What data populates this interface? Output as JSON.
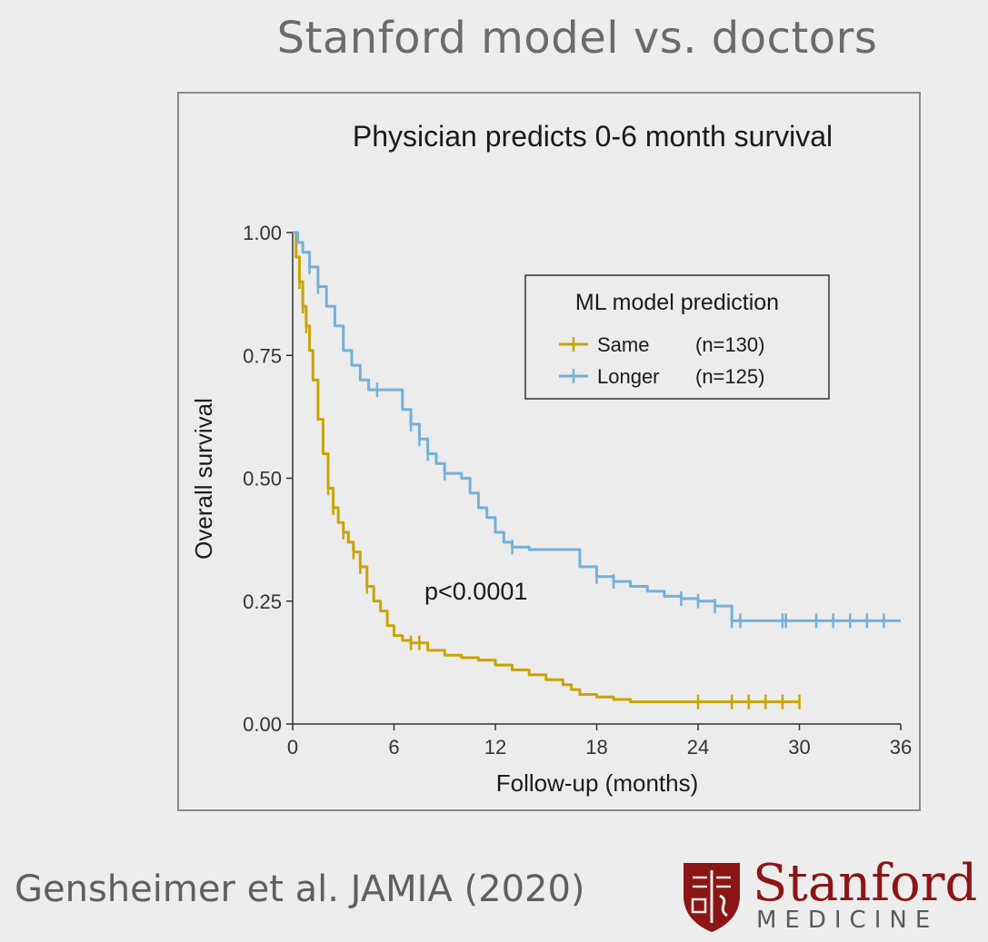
{
  "slide": {
    "title": "Stanford model vs. doctors",
    "citation": "Gensheimer et al. JAMIA (2020)",
    "logo": {
      "word": "Stanford",
      "sub": "MEDICINE",
      "color": "#8c1515"
    }
  },
  "chart_data": {
    "type": "line",
    "title": "Physician predicts 0-6 month survival",
    "xlabel": "Follow-up (months)",
    "ylabel": "Overall survival",
    "xlim": [
      0,
      36
    ],
    "ylim": [
      0,
      1
    ],
    "xticks": [
      "0",
      "6",
      "12",
      "18",
      "24",
      "30",
      "36"
    ],
    "yticks": [
      "0.00",
      "0.25",
      "0.50",
      "0.75",
      "1.00"
    ],
    "grid": false,
    "legend": {
      "title": "ML model prediction",
      "placement": "top-right",
      "entries": [
        {
          "label": "Same",
          "n": "(n=130)"
        },
        {
          "label": "Longer",
          "n": "(n=125)"
        }
      ]
    },
    "annotation": "p<0.0001",
    "series": [
      {
        "name": "Same",
        "color": "#c9a400",
        "x": [
          0,
          0.2,
          0.4,
          0.6,
          0.8,
          1.0,
          1.2,
          1.5,
          1.8,
          2.1,
          2.4,
          2.7,
          3.0,
          3.3,
          3.6,
          4.0,
          4.4,
          4.8,
          5.2,
          5.6,
          6.0,
          6.5,
          7.0,
          8.0,
          9.0,
          10.0,
          11.0,
          12.0,
          13.0,
          14.0,
          15.0,
          16.0,
          16.5,
          17.0,
          18.0,
          19.0,
          20.0,
          22.0,
          24.0,
          26.0,
          28.0,
          30.0
        ],
        "y": [
          1.0,
          0.95,
          0.9,
          0.85,
          0.81,
          0.76,
          0.7,
          0.62,
          0.55,
          0.48,
          0.44,
          0.41,
          0.39,
          0.37,
          0.35,
          0.32,
          0.28,
          0.25,
          0.23,
          0.2,
          0.18,
          0.17,
          0.165,
          0.15,
          0.14,
          0.135,
          0.13,
          0.12,
          0.11,
          0.1,
          0.09,
          0.08,
          0.07,
          0.06,
          0.055,
          0.05,
          0.045,
          0.045,
          0.045,
          0.045,
          0.045,
          0.045
        ],
        "censor_x": [
          0.4,
          0.6,
          0.8,
          2.1,
          2.4,
          3.0,
          3.6,
          4.0,
          4.4,
          7.0,
          7.5,
          24.0,
          26.0,
          27.0,
          28.0,
          29.0,
          30.0
        ]
      },
      {
        "name": "Longer",
        "color": "#74b0d8",
        "x": [
          0,
          0.3,
          0.6,
          1.0,
          1.5,
          2.0,
          2.5,
          3.0,
          3.5,
          4.0,
          4.5,
          5.0,
          5.5,
          6.0,
          6.5,
          7.0,
          7.5,
          8.0,
          8.5,
          9.0,
          9.5,
          10.0,
          10.5,
          11.0,
          11.5,
          12.0,
          12.5,
          13.0,
          14.0,
          15.0,
          16.0,
          17.0,
          18.0,
          19.0,
          20.0,
          21.0,
          22.0,
          23.0,
          24.0,
          25.0,
          26.0,
          27.0,
          28.0,
          30.0,
          32.0,
          34.0,
          36.0
        ],
        "y": [
          1.0,
          0.98,
          0.96,
          0.93,
          0.89,
          0.85,
          0.81,
          0.76,
          0.73,
          0.7,
          0.68,
          0.68,
          0.68,
          0.68,
          0.64,
          0.61,
          0.58,
          0.55,
          0.53,
          0.51,
          0.51,
          0.5,
          0.47,
          0.44,
          0.42,
          0.39,
          0.37,
          0.36,
          0.355,
          0.355,
          0.355,
          0.32,
          0.3,
          0.29,
          0.28,
          0.27,
          0.26,
          0.255,
          0.25,
          0.24,
          0.21,
          0.21,
          0.21,
          0.21,
          0.21,
          0.21,
          0.21
        ],
        "censor_x": [
          1.0,
          1.5,
          5.0,
          7.0,
          7.5,
          8.0,
          9.0,
          13.0,
          18.0,
          19.0,
          23.0,
          24.0,
          25.0,
          26.0,
          26.5,
          29.0,
          29.2,
          31.0,
          32.0,
          33.0,
          34.0,
          35.0
        ]
      }
    ]
  }
}
